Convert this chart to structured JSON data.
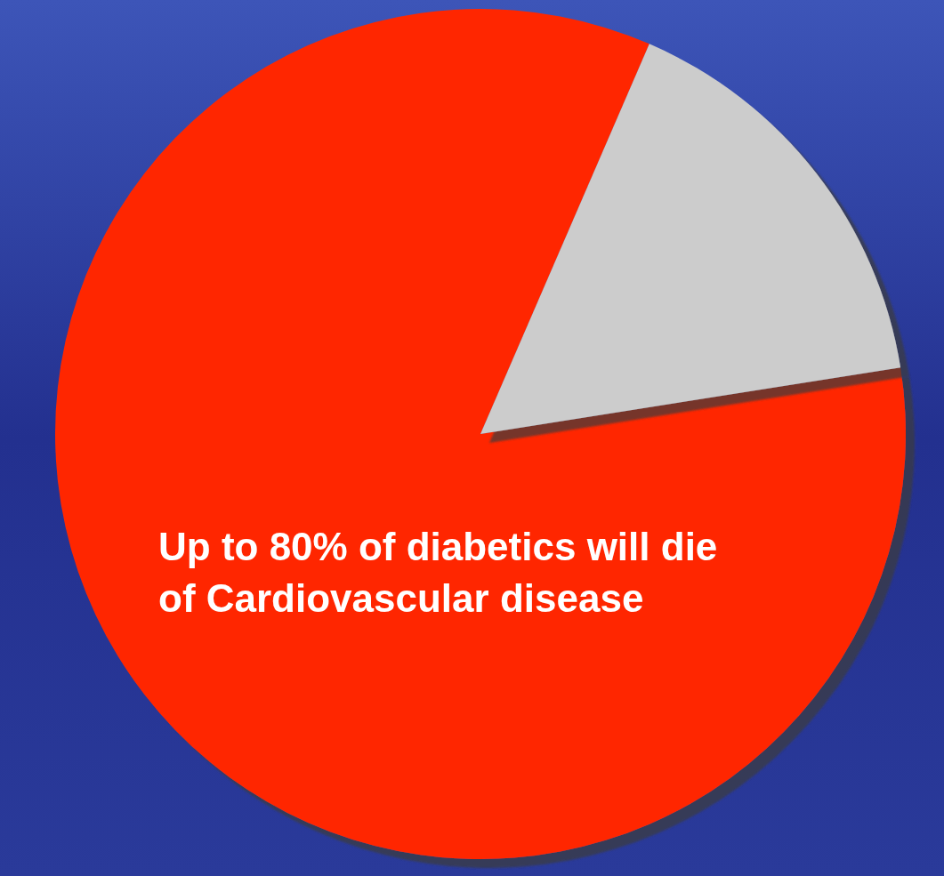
{
  "chart_data": {
    "type": "pie",
    "categories": [
      null,
      null
    ],
    "values": [
      84,
      16
    ],
    "colors": [
      "#ff2800",
      "#cccccc"
    ],
    "annotations": [
      "Up to 80% of diabetics will die\nof Cardiovascular disease"
    ]
  }
}
